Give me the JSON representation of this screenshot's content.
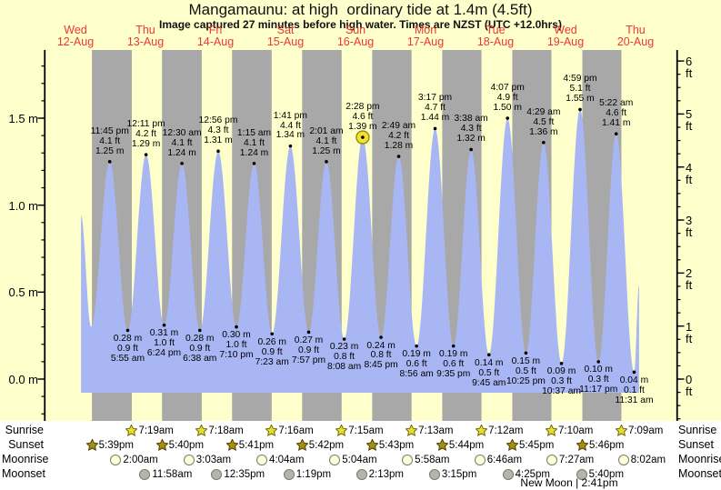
{
  "title": "Mangamaunu: at high  ordinary tide at 1.4m (4.5ft)",
  "subtitle": "Image captured 27 minutes before high water. Times are NZST (UTC +12.0hrs)",
  "colors": {
    "page_yellow": "#ffffcc",
    "night_band": "#a8a8a8",
    "tide_fill": "#a9b6f4",
    "day_label_red": "#ef3535",
    "current_marker_fill": "#f0e136",
    "current_marker_stroke": "#948300",
    "sunrise_star_fill": "#e3dd38",
    "sunrise_star_stroke": "#6e6900",
    "sunset_star_fill": "#a78f12",
    "sunset_star_stroke": "#4d4000",
    "moonrise_fill": "#ffffd8",
    "moonset_fill": "#b5b5ae",
    "axis": "#000000"
  },
  "chart_data": {
    "type": "area",
    "title": "Mangamaunu: at high  ordinary tide at 1.4m (4.5ft)",
    "days": [
      {
        "dow": "Wed",
        "date": "12-Aug"
      },
      {
        "dow": "Thu",
        "date": "13-Aug"
      },
      {
        "dow": "Fri",
        "date": "14-Aug"
      },
      {
        "dow": "Sat",
        "date": "15-Aug"
      },
      {
        "dow": "Sun",
        "date": "16-Aug"
      },
      {
        "dow": "Mon",
        "date": "17-Aug"
      },
      {
        "dow": "Tue",
        "date": "18-Aug"
      },
      {
        "dow": "Wed",
        "date": "19-Aug"
      },
      {
        "dow": "Thu",
        "date": "20-Aug"
      }
    ],
    "y_axis_left": {
      "unit": "m",
      "major_ticks": [
        {
          "label": "0.0 m",
          "v": 0.0
        },
        {
          "label": "0.5 m",
          "v": 0.5
        },
        {
          "label": "1.0 m",
          "v": 1.0
        },
        {
          "label": "1.5 m",
          "v": 1.5
        }
      ],
      "minor_step": 0.1,
      "minor_range": [
        -0.2,
        1.8
      ]
    },
    "y_axis_right": {
      "unit": "ft",
      "major_ticks": [
        0,
        1,
        2,
        3,
        4,
        5,
        6
      ],
      "minor_step": 0.25,
      "minor_range": [
        -0.75,
        6.0
      ]
    },
    "tides": [
      {
        "type": "low",
        "day": 0,
        "clock": 17.33,
        "m": "0.30",
        "ft": "1.0",
        "annotated": false
      },
      {
        "type": "high",
        "day": 0,
        "time": "11:45 pm",
        "ft": "4.1",
        "m": "1.25",
        "annotated": true
      },
      {
        "type": "low",
        "day": 1,
        "time": "5:55 am",
        "m": "0.28",
        "ft": "0.9",
        "annotated": true
      },
      {
        "type": "high",
        "day": 1,
        "time": "12:11 pm",
        "ft": "4.2",
        "m": "1.29",
        "annotated": true
      },
      {
        "type": "low",
        "day": 1,
        "time": "6:24 pm",
        "m": "0.31",
        "ft": "1.0",
        "annotated": true
      },
      {
        "type": "high",
        "day": 2,
        "time": "12:30 am",
        "ft": "4.1",
        "m": "1.24",
        "annotated": true
      },
      {
        "type": "low",
        "day": 2,
        "time": "6:38 am",
        "m": "0.28",
        "ft": "0.9",
        "annotated": true
      },
      {
        "type": "high",
        "day": 2,
        "time": "12:56 pm",
        "ft": "4.3",
        "m": "1.31",
        "annotated": true
      },
      {
        "type": "low",
        "day": 2,
        "time": "7:10 pm",
        "m": "0.30",
        "ft": "1.0",
        "annotated": true
      },
      {
        "type": "high",
        "day": 3,
        "time": "1:15 am",
        "ft": "4.1",
        "m": "1.24",
        "annotated": true
      },
      {
        "type": "low",
        "day": 3,
        "time": "7:23 am",
        "m": "0.26",
        "ft": "0.9",
        "annotated": true
      },
      {
        "type": "high",
        "day": 3,
        "time": "1:41 pm",
        "ft": "4.4",
        "m": "1.34",
        "annotated": true
      },
      {
        "type": "low",
        "day": 3,
        "time": "7:57 pm",
        "m": "0.27",
        "ft": "0.9",
        "annotated": true
      },
      {
        "type": "high",
        "day": 4,
        "time": "2:01 am",
        "ft": "4.1",
        "m": "1.25",
        "annotated": true
      },
      {
        "type": "low",
        "day": 4,
        "time": "8:08 am",
        "m": "0.23",
        "ft": "0.8",
        "annotated": true
      },
      {
        "type": "high",
        "day": 4,
        "time": "2:28 pm",
        "ft": "4.6",
        "m": "1.39",
        "annotated": true,
        "current": true
      },
      {
        "type": "low",
        "day": 4,
        "time": "8:45 pm",
        "m": "0.24",
        "ft": "0.8",
        "annotated": true
      },
      {
        "type": "high",
        "day": 5,
        "time": "2:49 am",
        "ft": "4.2",
        "m": "1.28",
        "annotated": true
      },
      {
        "type": "low",
        "day": 5,
        "time": "8:56 am",
        "m": "0.19",
        "ft": "0.6",
        "annotated": true
      },
      {
        "type": "high",
        "day": 5,
        "time": "3:17 pm",
        "ft": "4.7",
        "m": "1.44",
        "annotated": true
      },
      {
        "type": "low",
        "day": 5,
        "time": "9:35 pm",
        "m": "0.19",
        "ft": "0.6",
        "annotated": true
      },
      {
        "type": "high",
        "day": 6,
        "time": "3:38 am",
        "ft": "4.3",
        "m": "1.32",
        "annotated": true
      },
      {
        "type": "low",
        "day": 6,
        "time": "9:45 am",
        "m": "0.14",
        "ft": "0.5",
        "annotated": true
      },
      {
        "type": "high",
        "day": 6,
        "time": "4:07 pm",
        "ft": "4.9",
        "m": "1.50",
        "annotated": true
      },
      {
        "type": "low",
        "day": 6,
        "time": "10:25 pm",
        "m": "0.15",
        "ft": "0.5",
        "annotated": true
      },
      {
        "type": "high",
        "day": 7,
        "time": "4:29 am",
        "ft": "4.5",
        "m": "1.36",
        "annotated": true
      },
      {
        "type": "low",
        "day": 7,
        "time": "10:37 am",
        "m": "0.09",
        "ft": "0.3",
        "annotated": true
      },
      {
        "type": "high",
        "day": 7,
        "time": "4:59 pm",
        "ft": "5.1",
        "m": "1.55",
        "annotated": true
      },
      {
        "type": "low",
        "day": 7,
        "time": "11:17 pm",
        "m": "0.10",
        "ft": "0.3",
        "annotated": true
      },
      {
        "type": "high",
        "day": 8,
        "time": "5:22 am",
        "ft": "4.6",
        "m": "1.41",
        "annotated": true
      },
      {
        "type": "low",
        "day": 8,
        "time": "11:31 am",
        "m": "0.04",
        "ft": "0.1",
        "annotated": true
      }
    ],
    "data_edges": {
      "start": {
        "day": 0,
        "clock": 13.9,
        "m": 0.94
      },
      "end": {
        "day": 8,
        "clock": 13.2,
        "m": 0.54
      }
    }
  },
  "astro": {
    "rows": [
      {
        "id": "sunrise",
        "label": "Sunrise",
        "icon": "sunrise-star-icon",
        "entries": [
          {
            "day": 1,
            "time": "7:19am"
          },
          {
            "day": 2,
            "time": "7:18am"
          },
          {
            "day": 3,
            "time": "7:16am"
          },
          {
            "day": 4,
            "time": "7:15am"
          },
          {
            "day": 5,
            "time": "7:13am"
          },
          {
            "day": 6,
            "time": "7:12am"
          },
          {
            "day": 7,
            "time": "7:10am"
          },
          {
            "day": 8,
            "time": "7:09am"
          }
        ]
      },
      {
        "id": "sunset",
        "label": "Sunset",
        "icon": "sunset-star-icon",
        "entries": [
          {
            "day": 0,
            "time": "5:39pm"
          },
          {
            "day": 1,
            "time": "5:40pm"
          },
          {
            "day": 2,
            "time": "5:41pm"
          },
          {
            "day": 3,
            "time": "5:42pm"
          },
          {
            "day": 4,
            "time": "5:43pm"
          },
          {
            "day": 5,
            "time": "5:44pm"
          },
          {
            "day": 6,
            "time": "5:45pm"
          },
          {
            "day": 7,
            "time": "5:46pm"
          }
        ]
      },
      {
        "id": "moonrise",
        "label": "Moonrise",
        "icon": "moonrise-circle-icon",
        "entries": [
          {
            "day": 1,
            "time": "2:00am"
          },
          {
            "day": 2,
            "time": "3:03am"
          },
          {
            "day": 3,
            "time": "4:04am"
          },
          {
            "day": 4,
            "time": "5:04am"
          },
          {
            "day": 5,
            "time": "5:58am"
          },
          {
            "day": 6,
            "time": "6:46am"
          },
          {
            "day": 7,
            "time": "7:27am"
          },
          {
            "day": 8,
            "time": "8:02am"
          }
        ]
      },
      {
        "id": "moonset",
        "label": "Moonset",
        "icon": "moonset-circle-icon",
        "entries": [
          {
            "day": 1,
            "time": "11:58am"
          },
          {
            "day": 2,
            "time": "12:35pm"
          },
          {
            "day": 3,
            "time": "1:19pm"
          },
          {
            "day": 4,
            "time": "2:13pm"
          },
          {
            "day": 5,
            "time": "3:15pm"
          },
          {
            "day": 6,
            "time": "4:25pm"
          },
          {
            "day": 7,
            "time": "5:40pm"
          }
        ]
      }
    ],
    "moon_phase_note": "New Moon | 2:41pm"
  }
}
